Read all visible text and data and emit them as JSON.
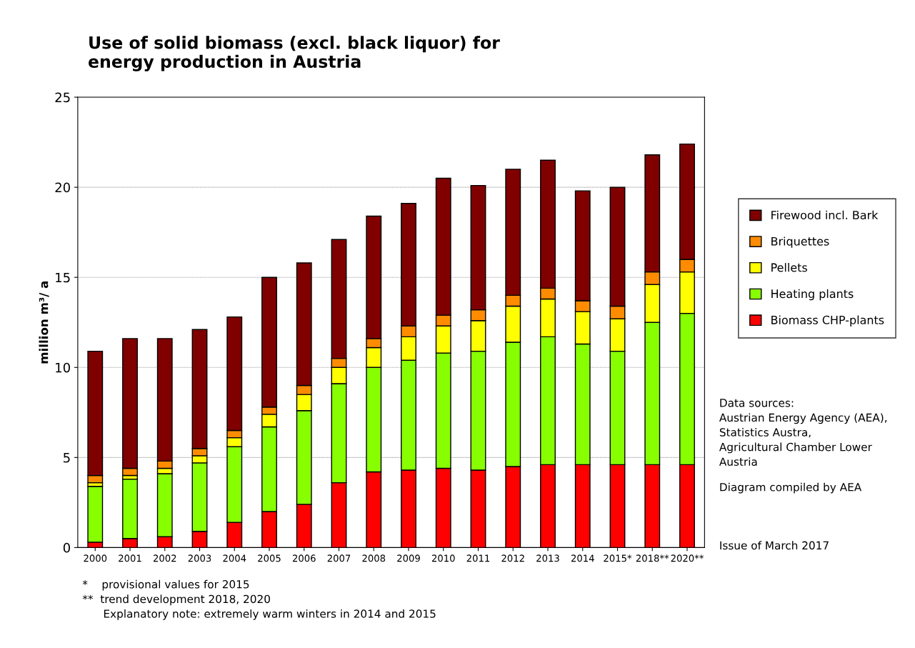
{
  "chart_data": {
    "type": "bar",
    "title": "Use of solid biomass (excl. black liquor) for\nenergy production in Austria",
    "ylabel": "million m³/ a",
    "categories": [
      "2000",
      "2001",
      "2002",
      "2003",
      "2004",
      "2005",
      "2006",
      "2007",
      "2008",
      "2009",
      "2010",
      "2011",
      "2012",
      "2013",
      "2014",
      "2015*",
      "2018**",
      "2020**"
    ],
    "stacked": true,
    "series": [
      {
        "name": "Biomass CHP-plants",
        "color": "#ff0000",
        "values": [
          0.3,
          0.5,
          0.6,
          0.9,
          1.4,
          2.0,
          2.4,
          3.6,
          4.2,
          4.3,
          4.4,
          4.3,
          4.5,
          4.6,
          4.6,
          4.6,
          4.6,
          4.6
        ]
      },
      {
        "name": "Heating plants",
        "color": "#88ff00",
        "values": [
          3.1,
          3.3,
          3.5,
          3.8,
          4.2,
          4.7,
          5.2,
          5.5,
          5.8,
          6.1,
          6.4,
          6.6,
          6.9,
          7.1,
          6.7,
          6.3,
          7.9,
          8.4
        ]
      },
      {
        "name": "Pellets",
        "color": "#ffff00",
        "values": [
          0.2,
          0.2,
          0.3,
          0.4,
          0.5,
          0.7,
          0.9,
          0.9,
          1.1,
          1.3,
          1.5,
          1.7,
          2.0,
          2.1,
          1.8,
          1.8,
          2.1,
          2.3
        ]
      },
      {
        "name": "Briquettes",
        "color": "#ff8c00",
        "values": [
          0.4,
          0.4,
          0.4,
          0.4,
          0.4,
          0.4,
          0.5,
          0.5,
          0.5,
          0.6,
          0.6,
          0.6,
          0.6,
          0.6,
          0.6,
          0.7,
          0.7,
          0.7
        ]
      },
      {
        "name": "Firewood incl. Bark",
        "color": "#800000",
        "values": [
          6.9,
          7.2,
          6.8,
          6.6,
          6.3,
          7.2,
          6.8,
          6.6,
          6.8,
          6.8,
          7.6,
          6.9,
          7.0,
          7.1,
          6.1,
          6.6,
          6.5,
          6.4
        ]
      }
    ],
    "ylim": [
      0,
      25
    ],
    "yticks": [
      0,
      5,
      10,
      15,
      20,
      25
    ],
    "grid": "y",
    "legend": "right",
    "annotations": [
      "Data sources:\nAustrian Energy Agency (AEA),\nStatistics Austra,\nAgricultural Chamber Lower\nAustria",
      "Diagram compiled by AEA",
      "Issue of March 2017",
      "*    provisional values for 2015\n**  trend development 2018, 2020\n      Explanatory note: extremely warm winters in 2014 and 2015"
    ]
  }
}
